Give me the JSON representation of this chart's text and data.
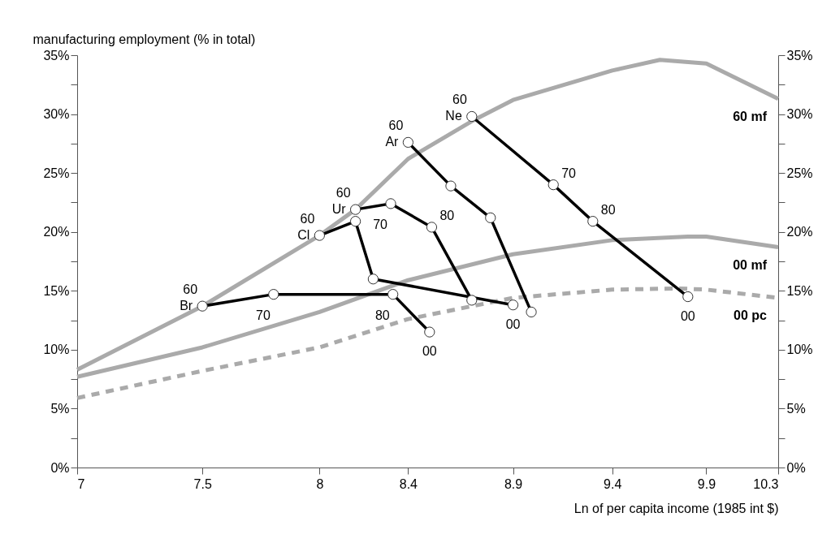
{
  "chart_data": {
    "type": "line",
    "xlabel": "Ln of per capita income (1985 int $)",
    "ylabel": "manufacturing employment (% in total)",
    "log": "x",
    "xlim": [
      7,
      10.3
    ],
    "xticks": [
      7,
      7.5,
      8,
      8.4,
      8.9,
      9.4,
      9.9,
      10.3
    ],
    "ylim": [
      0,
      35
    ],
    "yticks": [
      {
        "value": 0,
        "label": "0%"
      },
      {
        "value": 2.5,
        "label": null
      },
      {
        "value": 5,
        "label": "5%"
      },
      {
        "value": 7.5,
        "label": null
      },
      {
        "value": 10,
        "label": "10%"
      },
      {
        "value": 12.5,
        "label": null
      },
      {
        "value": 15,
        "label": "15%"
      },
      {
        "value": 17.5,
        "label": null
      },
      {
        "value": 20,
        "label": "20%"
      },
      {
        "value": 22.5,
        "label": null
      },
      {
        "value": 25,
        "label": "25%"
      },
      {
        "value": 27.5,
        "label": null
      },
      {
        "value": 30,
        "label": "30%"
      },
      {
        "value": 32.5,
        "label": null
      },
      {
        "value": 35,
        "label": "35%"
      }
    ],
    "y2lim": [
      0,
      35
    ],
    "y2ticks": [
      {
        "value": 0,
        "label": "0%"
      },
      {
        "value": 2.5,
        "label": null
      },
      {
        "value": 5,
        "label": "5%"
      },
      {
        "value": 7.5,
        "label": null
      },
      {
        "value": 10,
        "label": "10%"
      },
      {
        "value": 12.5,
        "label": null
      },
      {
        "value": 15,
        "label": "15%"
      },
      {
        "value": 17.5,
        "label": null
      },
      {
        "value": 20,
        "label": "20%"
      },
      {
        "value": 22.5,
        "label": null
      },
      {
        "value": 25,
        "label": "25%"
      },
      {
        "value": 27.5,
        "label": null
      },
      {
        "value": 30,
        "label": "30%"
      },
      {
        "value": 32.5,
        "label": null
      },
      {
        "value": 35,
        "label": "35%"
      }
    ],
    "grid": false,
    "legend": false,
    "series": [
      {
        "name": "60 mf",
        "color": "#aaaaaa",
        "marker": "none",
        "line_style": "solid",
        "x": [
          7,
          7.5,
          8,
          8.16,
          8.4,
          8.7,
          8.9,
          9.4,
          9.65,
          9.9,
          10.3
        ],
        "values": [
          8.3,
          13.7,
          19.7,
          21.9,
          26.2,
          29.4,
          31.2,
          33.7,
          34.6,
          34.3,
          31.3
        ]
      },
      {
        "name": "00 mf",
        "color": "#aaaaaa",
        "marker": "none",
        "line_style": "solid",
        "x": [
          7,
          7.5,
          8,
          8.4,
          8.9,
          9.4,
          9.8,
          9.9,
          10.3
        ],
        "values": [
          7.7,
          10.2,
          13.2,
          15.9,
          18.1,
          19.3,
          19.6,
          19.6,
          18.7
        ]
      },
      {
        "name": "00 pc",
        "color": "#aaaaaa",
        "marker": "none",
        "line_style": "dashed",
        "x": [
          7,
          7.5,
          8,
          8.4,
          8.9,
          9.4,
          9.75,
          9.9,
          10.3
        ],
        "values": [
          5.9,
          8.2,
          10.2,
          12.6,
          14.4,
          15.1,
          15.2,
          15.1,
          14.4
        ]
      },
      {
        "name": "Br",
        "color": "#000000",
        "marker": "circle",
        "line_style": "solid",
        "x": [
          7.5,
          7.8,
          8.33,
          8.5
        ],
        "values": [
          13.7,
          14.7,
          14.7,
          11.5
        ]
      },
      {
        "name": "Cl",
        "color": "#000000",
        "marker": "circle",
        "line_style": "solid",
        "x": [
          8,
          8.16,
          8.24,
          8.9
        ],
        "values": [
          19.7,
          20.9,
          16,
          13.8
        ]
      },
      {
        "name": "Ur",
        "color": "#000000",
        "marker": "circle",
        "line_style": "solid",
        "x": [
          8.16,
          8.32,
          8.51,
          8.7
        ],
        "values": [
          21.9,
          22.4,
          20.4,
          14.2
        ]
      },
      {
        "name": "Ar",
        "color": "#000000",
        "marker": "circle",
        "line_style": "solid",
        "x": [
          8.4,
          8.6,
          8.79,
          8.99
        ],
        "values": [
          27.6,
          23.9,
          21.2,
          13.2
        ]
      },
      {
        "name": "Ne",
        "color": "#000000",
        "marker": "circle",
        "line_style": "solid",
        "x": [
          8.7,
          9.1,
          9.3,
          9.8
        ],
        "values": [
          29.8,
          24,
          20.9,
          14.5
        ]
      }
    ],
    "annotations": [
      {
        "text": "60",
        "x": 7.5,
        "y": 13.7
      },
      {
        "text": "70",
        "x": 7.8,
        "y": 14.7
      },
      {
        "text": "80",
        "x": 8.33,
        "y": 14.7
      },
      {
        "text": "00",
        "x": 8.5,
        "y": 11.5
      },
      {
        "text": "60",
        "x": 8,
        "y": 19.7
      },
      {
        "text": "00",
        "x": 8.9,
        "y": 13.8
      },
      {
        "text": "60",
        "x": 8.16,
        "y": 21.9
      },
      {
        "text": "70",
        "x": 8.32,
        "y": 22.4
      },
      {
        "text": "80",
        "x": 8.51,
        "y": 20.4
      },
      {
        "text": "60",
        "x": 8.4,
        "y": 27.6
      },
      {
        "text": "60",
        "x": 8.7,
        "y": 29.8
      },
      {
        "text": "70",
        "x": 9.1,
        "y": 24
      },
      {
        "text": "80",
        "x": 9.3,
        "y": 20.9
      },
      {
        "text": "00",
        "x": 9.8,
        "y": 14.5
      }
    ]
  }
}
